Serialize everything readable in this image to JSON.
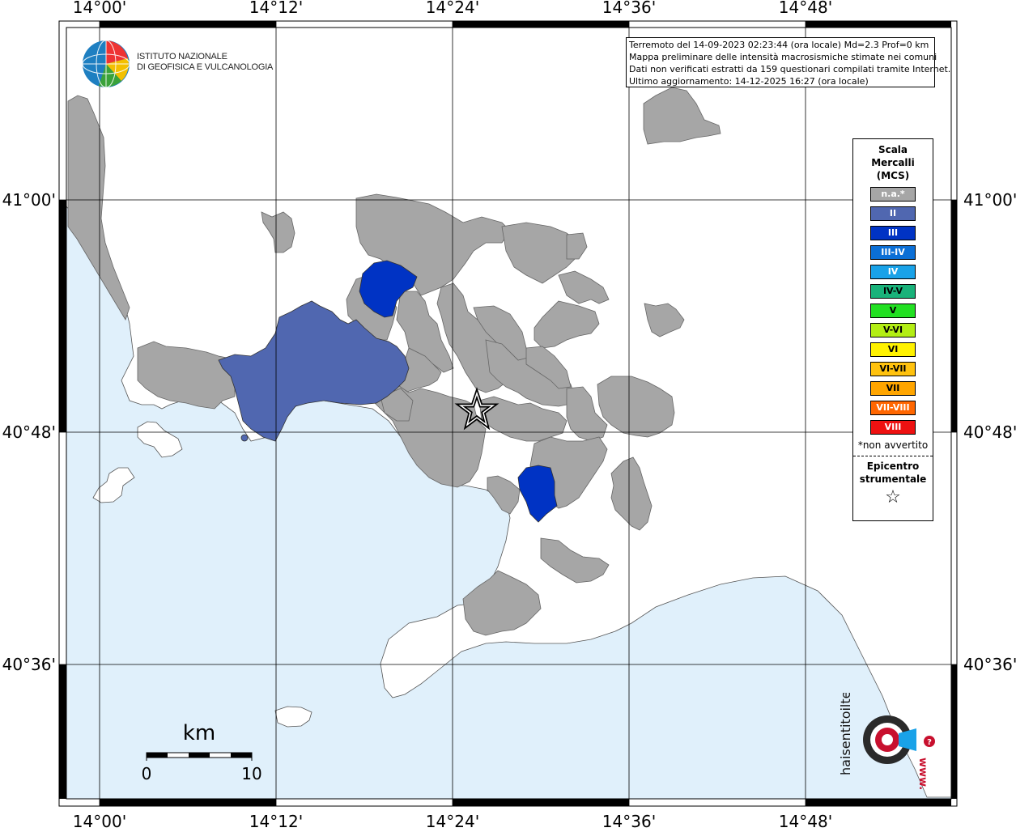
{
  "header": {
    "info_lines": [
      "Terremoto del 14-09-2023 02:23:44 (ora locale) Md=2.3 Prof=0 km",
      "Mappa preliminare delle intensità macrosismiche stimate nei comuni",
      "Dati non verificati estratti da 159 questionari compilati tramite Internet.",
      "Ultimo aggiornamento: 14-12-2025 16:27 (ora locale)"
    ]
  },
  "logos": {
    "ingv_line1": "ISTITUTO NAZIONALE",
    "ingv_line2": "DI GEOFISICA E VULCANOLOGIA",
    "haisentito_text": "haisentitoilterremoto.it",
    "haisentito_url": "www."
  },
  "axes": {
    "lon_labels": [
      "14°00'",
      "14°12'",
      "14°24'",
      "14°36'",
      "14°48'"
    ],
    "lat_labels": [
      "41°00'",
      "40°48'",
      "40°36'"
    ]
  },
  "legend": {
    "title_lines": [
      "Scala",
      "Mercalli",
      "(MCS)"
    ],
    "classes": [
      {
        "label": "n.a.*",
        "color": "#a6a6a6"
      },
      {
        "label": "II",
        "color": "#5067b0"
      },
      {
        "label": "III",
        "color": "#0033c4"
      },
      {
        "label": "III-IV",
        "color": "#0b6fd6"
      },
      {
        "label": "IV",
        "color": "#19a2e8"
      },
      {
        "label": "IV-V",
        "color": "#19b27a"
      },
      {
        "label": "V",
        "color": "#22e022"
      },
      {
        "label": "V-VI",
        "color": "#b3ee14"
      },
      {
        "label": "VI",
        "color": "#fff200"
      },
      {
        "label": "VI-VII",
        "color": "#ffc20e"
      },
      {
        "label": "VII",
        "color": "#ffa500"
      },
      {
        "label": "VII-VIII",
        "color": "#ff6600"
      },
      {
        "label": "VIII",
        "color": "#ee1111"
      }
    ],
    "note": "*non avvertito",
    "epicenter_lines": [
      "Epicentro",
      "strumentale"
    ],
    "epicenter_symbol": "☆"
  },
  "scalebar": {
    "unit": "km",
    "start": "0",
    "end": "10"
  },
  "colors": {
    "sea": "#e0f0fb",
    "land": "#ffffff",
    "na": "#a6a6a6",
    "ii": "#5067b0",
    "iii": "#0033c4"
  }
}
